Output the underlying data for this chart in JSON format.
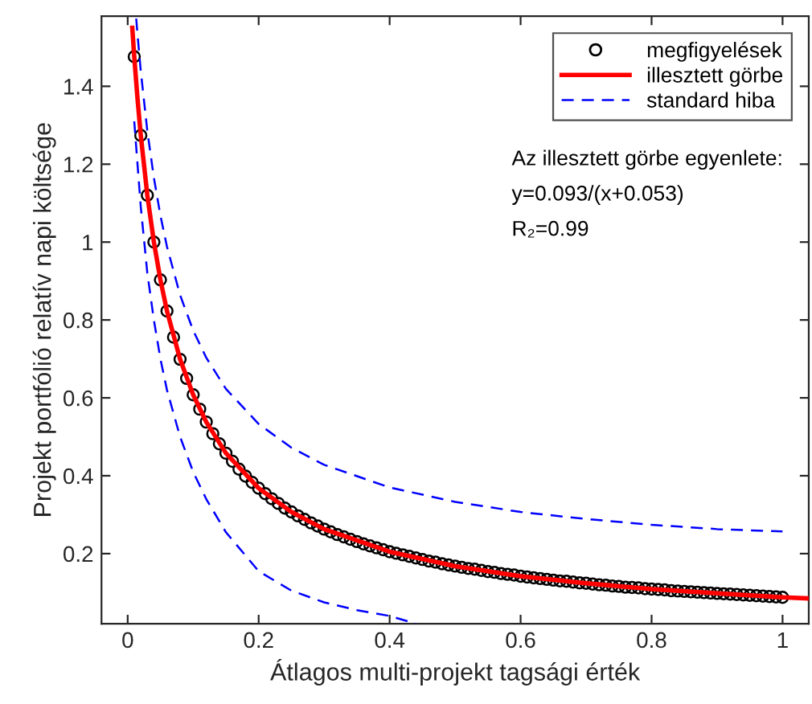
{
  "chart_data": {
    "type": "scatter",
    "xlabel": "Átlagos multi-projekt tagsági érték",
    "ylabel": "Projekt portfólió relatív napi költsége",
    "xlim": [
      -0.04,
      1.04
    ],
    "ylim": [
      0.02,
      1.58
    ],
    "xticks": [
      0,
      0.2,
      0.4,
      0.6,
      0.8,
      1
    ],
    "yticks": [
      0.2,
      0.4,
      0.6,
      0.8,
      1,
      1.2,
      1.4
    ],
    "grid": false,
    "legend": "top right",
    "annotations": [
      "Az illesztett görbe egyenlete:",
      "y=0.093/(x+0.053)",
      "R₂=0.99"
    ],
    "series": [
      {
        "name": "megfigyelések",
        "marker": "circle",
        "color": "#000000",
        "x": [
          0.01,
          0.02,
          0.03,
          0.04,
          0.05,
          0.06,
          0.07,
          0.08,
          0.09,
          0.1,
          0.11,
          0.12,
          0.13,
          0.14,
          0.15,
          0.16,
          0.17,
          0.18,
          0.19,
          0.2,
          0.21,
          0.22,
          0.23,
          0.24,
          0.25,
          0.26,
          0.27,
          0.28,
          0.29,
          0.3,
          0.31,
          0.32,
          0.33,
          0.34,
          0.35,
          0.36,
          0.37,
          0.38,
          0.39,
          0.4,
          0.41,
          0.42,
          0.43,
          0.44,
          0.45,
          0.46,
          0.47,
          0.48,
          0.49,
          0.5,
          0.51,
          0.52,
          0.53,
          0.54,
          0.55,
          0.56,
          0.57,
          0.58,
          0.59,
          0.6,
          0.61,
          0.62,
          0.63,
          0.64,
          0.65,
          0.66,
          0.67,
          0.68,
          0.69,
          0.7,
          0.71,
          0.72,
          0.73,
          0.74,
          0.75,
          0.76,
          0.77,
          0.78,
          0.79,
          0.8,
          0.81,
          0.82,
          0.83,
          0.84,
          0.85,
          0.86,
          0.87,
          0.88,
          0.89,
          0.9,
          0.91,
          0.92,
          0.93,
          0.94,
          0.95,
          0.96,
          0.97,
          0.98,
          0.99,
          1.0
        ],
        "values": [
          1.476,
          1.274,
          1.12,
          1.0,
          0.903,
          0.823,
          0.756,
          0.699,
          0.65,
          0.608,
          0.571,
          0.538,
          0.508,
          0.482,
          0.458,
          0.437,
          0.417,
          0.399,
          0.383,
          0.368,
          0.354,
          0.341,
          0.329,
          0.317,
          0.307,
          0.297,
          0.288,
          0.279,
          0.271,
          0.263,
          0.256,
          0.249,
          0.243,
          0.237,
          0.231,
          0.225,
          0.22,
          0.215,
          0.21,
          0.205,
          0.201,
          0.197,
          0.193,
          0.189,
          0.185,
          0.181,
          0.178,
          0.174,
          0.171,
          0.168,
          0.165,
          0.162,
          0.16,
          0.157,
          0.154,
          0.152,
          0.149,
          0.147,
          0.145,
          0.142,
          0.14,
          0.138,
          0.136,
          0.134,
          0.132,
          0.13,
          0.129,
          0.127,
          0.125,
          0.124,
          0.122,
          0.12,
          0.119,
          0.117,
          0.116,
          0.114,
          0.113,
          0.112,
          0.11,
          0.109,
          0.108,
          0.107,
          0.105,
          0.104,
          0.103,
          0.102,
          0.101,
          0.1,
          0.099,
          0.098,
          0.097,
          0.096,
          0.095,
          0.094,
          0.093,
          0.092,
          0.091,
          0.09,
          0.089,
          0.088
        ]
      },
      {
        "name": "illesztett görbe",
        "type": "line",
        "line_style": "solid",
        "color": "#ff0000",
        "x": [
          0.007,
          0.01,
          0.015,
          0.02,
          0.03,
          0.04,
          0.05,
          0.06,
          0.08,
          0.1,
          0.12,
          0.15,
          0.2,
          0.25,
          0.3,
          0.4,
          0.5,
          0.6,
          0.7,
          0.8,
          0.9,
          1.0,
          1.04
        ],
        "values": [
          1.55,
          1.476,
          1.368,
          1.274,
          1.12,
          1.0,
          0.903,
          0.823,
          0.699,
          0.608,
          0.538,
          0.458,
          0.368,
          0.307,
          0.263,
          0.205,
          0.168,
          0.142,
          0.124,
          0.109,
          0.098,
          0.088,
          0.085
        ]
      },
      {
        "name": "standard hiba",
        "type": "line",
        "line_style": "dashed",
        "color": "#0000ff",
        "x": [
          0.013,
          0.015,
          0.02,
          0.03,
          0.04,
          0.05,
          0.06,
          0.08,
          0.1,
          0.12,
          0.15,
          0.2,
          0.25,
          0.3,
          0.4,
          0.5,
          0.6,
          0.7,
          0.8,
          0.9,
          1.0
        ],
        "values": [
          1.574,
          1.533,
          1.439,
          1.285,
          1.165,
          1.068,
          0.988,
          0.864,
          0.773,
          0.703,
          0.623,
          0.533,
          0.472,
          0.428,
          0.37,
          0.333,
          0.307,
          0.289,
          0.274,
          0.263,
          0.257
        ]
      },
      {
        "type": "line",
        "line_style": "dashed",
        "color": "#0000ff",
        "x": [
          0.01,
          0.02,
          0.03,
          0.04,
          0.05,
          0.06,
          0.08,
          0.1,
          0.12,
          0.15,
          0.2,
          0.25,
          0.3,
          0.35,
          0.4,
          0.44
        ],
        "values": [
          1.31,
          1.09,
          0.92,
          0.8,
          0.7,
          0.62,
          0.5,
          0.41,
          0.34,
          0.255,
          0.155,
          0.105,
          0.075,
          0.055,
          0.04,
          0.02
        ]
      }
    ]
  }
}
